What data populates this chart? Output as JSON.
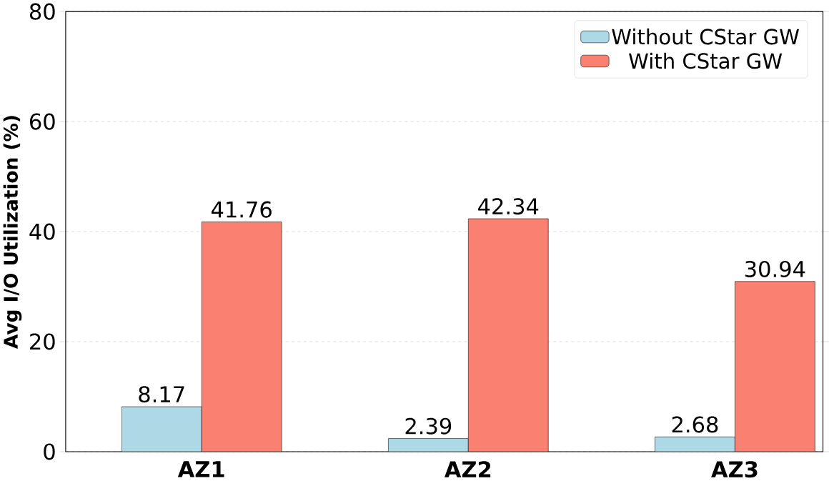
{
  "chart_data": {
    "type": "bar",
    "ylabel": "Avg I/O Utilization (%)",
    "categories": [
      "AZ1",
      "AZ2",
      "AZ3"
    ],
    "series": [
      {
        "name": "Without CStar GW",
        "color": "#add8e6",
        "values": [
          8.17,
          2.39,
          2.68
        ]
      },
      {
        "name": "With CStar GW",
        "color": "#fa8072",
        "values": [
          41.76,
          42.34,
          30.94
        ]
      }
    ],
    "ylim": [
      0,
      80
    ],
    "yticks": [
      0,
      20,
      40,
      60,
      80
    ],
    "grid": "y",
    "legend": "top right",
    "data_labels": true
  }
}
